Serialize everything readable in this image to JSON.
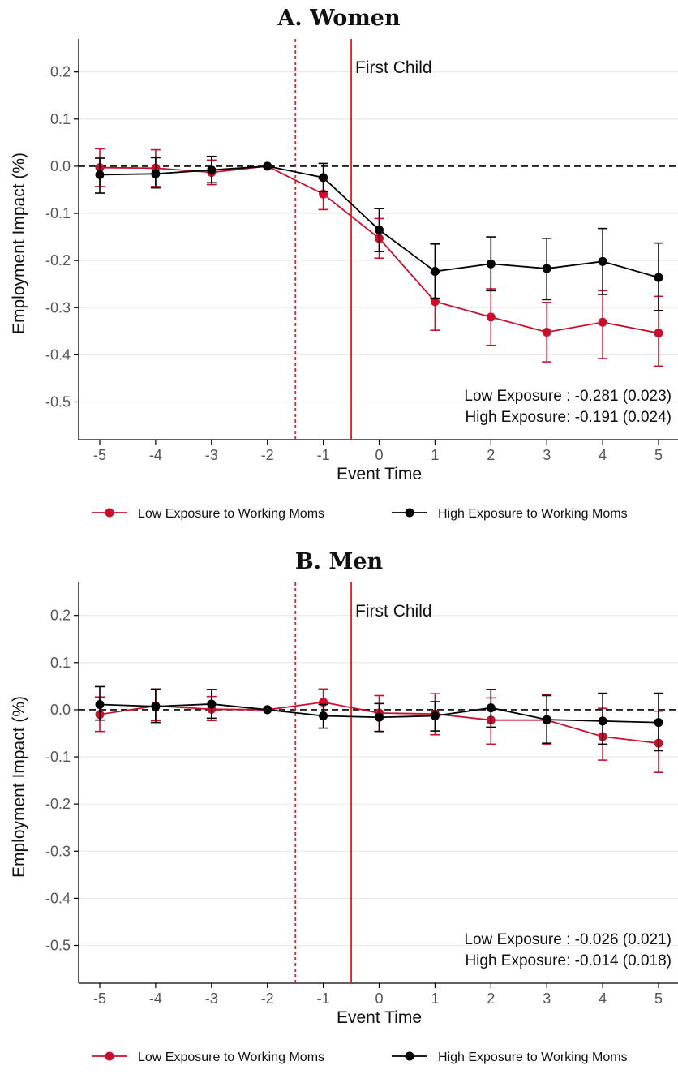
{
  "chart_data": [
    {
      "type": "line",
      "title": "A. Women",
      "xlabel": "Event Time",
      "ylabel": "Employment Impact (%)",
      "x": [
        -5,
        -4,
        -3,
        -2,
        -1,
        0,
        1,
        2,
        3,
        4,
        5
      ],
      "xticks": [
        "-5",
        "-4",
        "-3",
        "-2",
        "-1",
        "0",
        "1",
        "2",
        "3",
        "4",
        "5"
      ],
      "yticks": [
        "0.2",
        "0.1",
        "0.0",
        "-0.1",
        "-0.2",
        "-0.3",
        "-0.4",
        "-0.5"
      ],
      "ytick_values": [
        0.2,
        0.1,
        0.0,
        -0.1,
        -0.2,
        -0.3,
        -0.4,
        -0.5
      ],
      "ylim": [
        -0.58,
        0.27
      ],
      "xlim": [
        -5.4,
        5.4
      ],
      "grid": true,
      "event_label": "First Child",
      "event_line_x": -0.5,
      "pre_line_x": -1.5,
      "series": [
        {
          "name": "Low Exposure to Working Moms",
          "color": "#c8102e",
          "values": [
            -0.003,
            -0.004,
            -0.013,
            0.0,
            -0.059,
            -0.153,
            -0.287,
            -0.32,
            -0.352,
            -0.331,
            -0.354
          ],
          "ci_low": [
            -0.043,
            -0.043,
            -0.039,
            0.0,
            -0.092,
            -0.195,
            -0.348,
            -0.38,
            -0.415,
            -0.408,
            -0.424
          ],
          "ci_high": [
            0.037,
            0.035,
            0.013,
            0.0,
            -0.027,
            -0.111,
            -0.225,
            -0.26,
            -0.289,
            -0.264,
            -0.276
          ]
        },
        {
          "name": "High Exposure to Working Moms",
          "color": "#000000",
          "values": [
            -0.018,
            -0.016,
            -0.008,
            0.0,
            -0.024,
            -0.135,
            -0.223,
            -0.207,
            -0.217,
            -0.202,
            -0.236
          ],
          "ci_low": [
            -0.057,
            -0.046,
            -0.035,
            0.0,
            -0.054,
            -0.181,
            -0.28,
            -0.264,
            -0.283,
            -0.272,
            -0.306
          ],
          "ci_high": [
            0.017,
            0.018,
            0.021,
            0.0,
            0.006,
            -0.09,
            -0.165,
            -0.15,
            -0.153,
            -0.132,
            -0.163
          ]
        }
      ],
      "annotations": [
        "Low Exposure : -0.281 (0.023)",
        "High Exposure: -0.191 (0.024)"
      ],
      "legend_position": "bottom"
    },
    {
      "type": "line",
      "title": "B. Men",
      "xlabel": "Event Time",
      "ylabel": "Employment Impact (%)",
      "x": [
        -5,
        -4,
        -3,
        -2,
        -1,
        0,
        1,
        2,
        3,
        4,
        5
      ],
      "xticks": [
        "-5",
        "-4",
        "-3",
        "-2",
        "-1",
        "0",
        "1",
        "2",
        "3",
        "4",
        "5"
      ],
      "yticks": [
        "0.2",
        "0.1",
        "0.0",
        "-0.1",
        "-0.2",
        "-0.3",
        "-0.4",
        "-0.5"
      ],
      "ytick_values": [
        0.2,
        0.1,
        0.0,
        -0.1,
        -0.2,
        -0.3,
        -0.4,
        -0.5
      ],
      "ylim": [
        -0.58,
        0.27
      ],
      "xlim": [
        -5.4,
        5.4
      ],
      "grid": true,
      "event_label": "First Child",
      "event_line_x": -0.5,
      "pre_line_x": -1.5,
      "series": [
        {
          "name": "Low Exposure to Working Moms",
          "color": "#c8102e",
          "values": [
            -0.01,
            0.008,
            0.001,
            0.0,
            0.016,
            -0.007,
            -0.009,
            -0.022,
            -0.022,
            -0.057,
            -0.071
          ],
          "ci_low": [
            -0.046,
            -0.023,
            -0.023,
            0.0,
            -0.013,
            -0.046,
            -0.053,
            -0.073,
            -0.074,
            -0.107,
            -0.133
          ],
          "ci_high": [
            0.027,
            0.043,
            0.028,
            0.0,
            0.044,
            0.03,
            0.034,
            0.025,
            0.032,
            0.003,
            -0.003
          ]
        },
        {
          "name": "High Exposure to Working Moms",
          "color": "#000000",
          "values": [
            0.011,
            0.007,
            0.012,
            0.0,
            -0.013,
            -0.016,
            -0.013,
            0.004,
            -0.021,
            -0.024,
            -0.027
          ],
          "ci_low": [
            -0.022,
            -0.027,
            -0.018,
            0.0,
            -0.039,
            -0.046,
            -0.045,
            -0.037,
            -0.071,
            -0.073,
            -0.087
          ],
          "ci_high": [
            0.049,
            0.044,
            0.043,
            0.0,
            0.011,
            0.013,
            0.017,
            0.043,
            0.03,
            0.035,
            0.035
          ]
        }
      ],
      "annotations": [
        "Low Exposure : -0.026 (0.021)",
        "High Exposure: -0.014 (0.018)"
      ],
      "legend_position": "bottom"
    }
  ]
}
